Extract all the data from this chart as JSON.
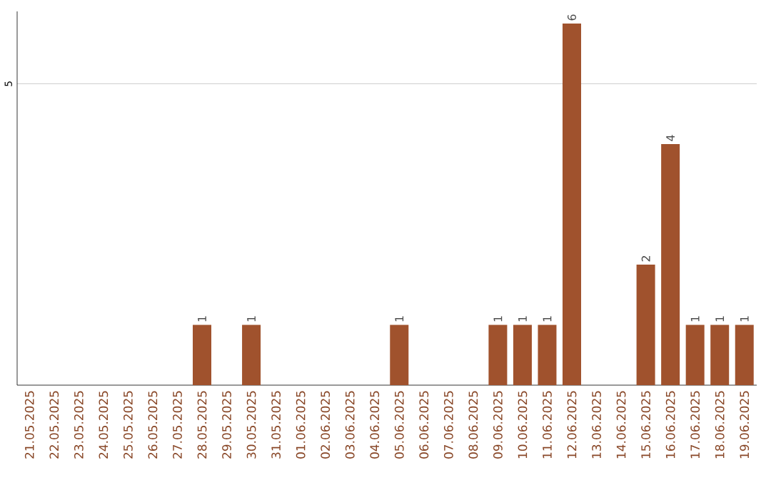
{
  "chart_data": {
    "type": "bar",
    "categories": [
      "21.05.2025",
      "22.05.2025",
      "23.05.2025",
      "24.05.2025",
      "25.05.2025",
      "26.05.2025",
      "27.05.2025",
      "28.05.2025",
      "29.05.2025",
      "30.05.2025",
      "31.05.2025",
      "01.06.2025",
      "02.06.2025",
      "03.06.2025",
      "04.06.2025",
      "05.06.2025",
      "06.06.2025",
      "07.06.2025",
      "08.06.2025",
      "09.06.2025",
      "10.06.2025",
      "11.06.2025",
      "12.06.2025",
      "13.06.2025",
      "14.06.2025",
      "15.06.2025",
      "16.06.2025",
      "17.06.2025",
      "18.06.2025",
      "19.06.2025"
    ],
    "values": [
      0,
      0,
      0,
      0,
      0,
      0,
      0,
      1,
      0,
      1,
      0,
      0,
      0,
      0,
      0,
      1,
      0,
      0,
      0,
      1,
      1,
      1,
      6,
      0,
      0,
      2,
      4,
      1,
      1,
      1
    ],
    "value_labels": [
      null,
      null,
      null,
      null,
      null,
      null,
      null,
      "1",
      null,
      "1",
      null,
      null,
      null,
      null,
      null,
      "1",
      null,
      null,
      null,
      "1",
      "1",
      "1",
      "6",
      null,
      null,
      "2",
      "4",
      "1",
      "1",
      "1"
    ],
    "color": "#a0522d",
    "ylim": [
      0,
      6.2
    ],
    "yticks": [
      5
    ],
    "grid": "y"
  }
}
